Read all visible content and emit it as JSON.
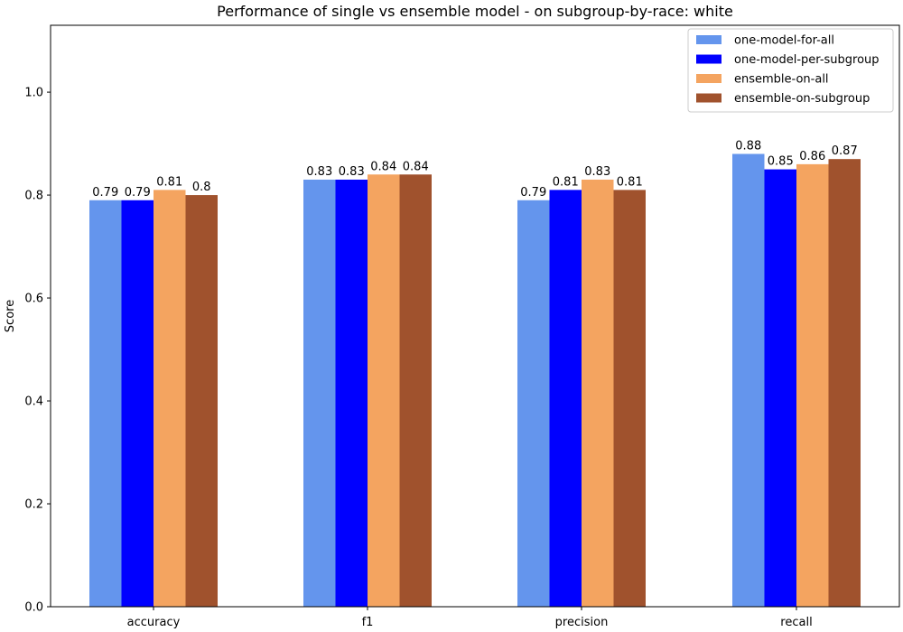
{
  "chart_data": {
    "type": "bar",
    "title": "Performance of single vs ensemble model - on subgroup-by-race: white",
    "xlabel": "",
    "ylabel": "Score",
    "ylim": [
      0,
      1.13
    ],
    "yticks": [
      "0.0",
      "0.2",
      "0.4",
      "0.6",
      "0.8",
      "1.0"
    ],
    "categories": [
      "accuracy",
      "f1",
      "precision",
      "recall"
    ],
    "legend_position": "top-right",
    "grid": false,
    "series": [
      {
        "name": "one-model-for-all",
        "color": "#6495ED",
        "values": [
          0.79,
          0.83,
          0.79,
          0.88
        ],
        "labels": [
          "0.79",
          "0.83",
          "0.79",
          "0.88"
        ]
      },
      {
        "name": "one-model-per-subgroup",
        "color": "#0000FF",
        "values": [
          0.79,
          0.83,
          0.81,
          0.85
        ],
        "labels": [
          "0.79",
          "0.83",
          "0.81",
          "0.85"
        ]
      },
      {
        "name": "ensemble-on-all",
        "color": "#F4A460",
        "values": [
          0.81,
          0.84,
          0.83,
          0.86
        ],
        "labels": [
          "0.81",
          "0.84",
          "0.83",
          "0.86"
        ]
      },
      {
        "name": "ensemble-on-subgroup",
        "color": "#A0522D",
        "values": [
          0.8,
          0.84,
          0.81,
          0.87
        ],
        "labels": [
          "0.8",
          "0.84",
          "0.81",
          "0.87"
        ]
      }
    ]
  }
}
